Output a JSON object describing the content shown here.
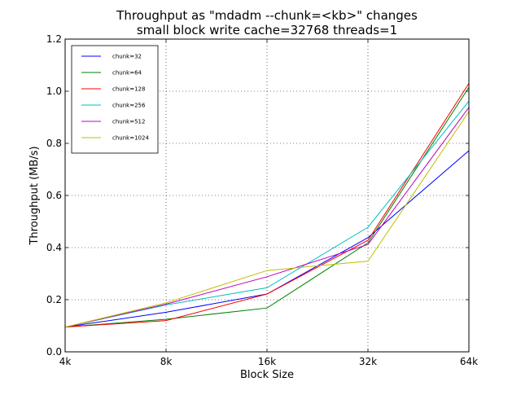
{
  "chart_data": {
    "type": "line",
    "title": "Throughput as \"mdadm --chunk=<kb>\" changes",
    "subtitle": "small block write cache=32768 threads=1",
    "xlabel": "Block Size",
    "ylabel": "Throughput (MB/s)",
    "categories": [
      "4k",
      "8k",
      "16k",
      "32k",
      "64k"
    ],
    "ylim": [
      0,
      1.2
    ],
    "yticks": [
      "0.0",
      "0.2",
      "0.4",
      "0.6",
      "0.8",
      "1.0",
      "1.2"
    ],
    "grid": true,
    "legend_position": "top-left",
    "series": [
      {
        "name": "chunk=32",
        "color": "#0000ff",
        "values": [
          0.095,
          0.152,
          0.222,
          0.438,
          0.772
        ]
      },
      {
        "name": "chunk=64",
        "color": "#008000",
        "values": [
          0.095,
          0.125,
          0.168,
          0.418,
          1.015
        ]
      },
      {
        "name": "chunk=128",
        "color": "#ff0000",
        "values": [
          0.095,
          0.12,
          0.222,
          0.428,
          1.03
        ]
      },
      {
        "name": "chunk=256",
        "color": "#00bfbf",
        "values": [
          0.095,
          0.18,
          0.246,
          0.478,
          0.962
        ]
      },
      {
        "name": "chunk=512",
        "color": "#bf00bf",
        "values": [
          0.095,
          0.183,
          0.288,
          0.412,
          0.938
        ]
      },
      {
        "name": "chunk=1024",
        "color": "#bfbf00",
        "values": [
          0.095,
          0.188,
          0.312,
          0.348,
          0.922
        ]
      }
    ]
  }
}
